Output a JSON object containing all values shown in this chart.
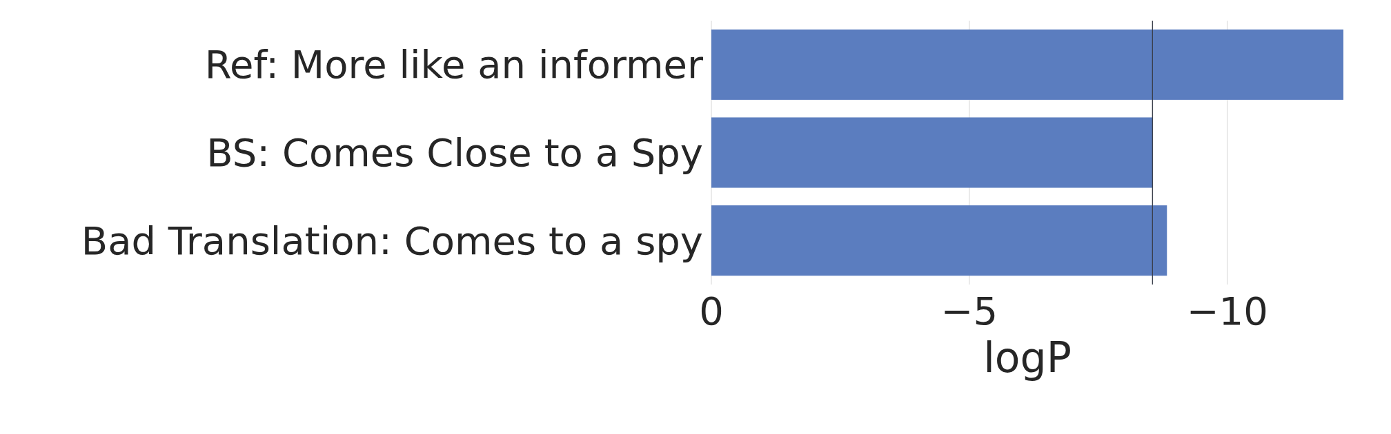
{
  "chart_data": {
    "type": "bar",
    "orientation": "horizontal",
    "categories": [
      "Ref: More like an informer",
      "BS: Comes Close to a Spy",
      "Bad Translation: Comes to a spy"
    ],
    "values": [
      -12.25,
      -8.55,
      -8.83
    ],
    "color": "#5b7dbf",
    "xlim": [
      0,
      -12.25
    ],
    "xticks": [
      {
        "value": 0,
        "label": "0"
      },
      {
        "value": -5,
        "label": "−5"
      },
      {
        "value": -10,
        "label": "−10"
      }
    ],
    "xlabel": "logP",
    "grid": "x",
    "ref_lines": [
      {
        "axis": "x",
        "value": -8.55,
        "color": "#3a3f4a"
      }
    ]
  }
}
